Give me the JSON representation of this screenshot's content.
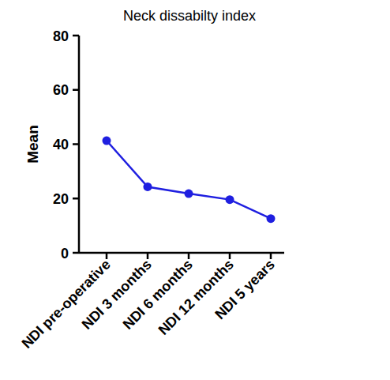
{
  "chart_data": {
    "type": "line",
    "title": "Neck dissabilty index",
    "y_label": "Mean",
    "categories": [
      "NDI pre-operative",
      "NDI 3 months",
      "NDI 6 months",
      "NDI 12 months",
      "NDI 5 years"
    ],
    "values": [
      41.3,
      24.3,
      21.8,
      19.6,
      12.6
    ],
    "color": "#1f1fe0",
    "marker": "circle",
    "ylim": [
      0,
      80
    ],
    "yticks": [
      0,
      20,
      40,
      60,
      80
    ],
    "grid": false
  }
}
